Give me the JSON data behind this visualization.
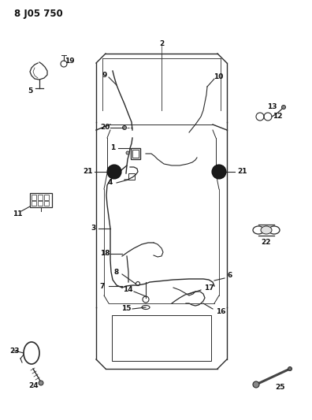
{
  "title": "8 J05 750",
  "bg_color": "#ffffff",
  "line_color": "#2a2a2a",
  "label_color": "#111111",
  "fig_width": 3.96,
  "fig_height": 5.33,
  "dpi": 100
}
